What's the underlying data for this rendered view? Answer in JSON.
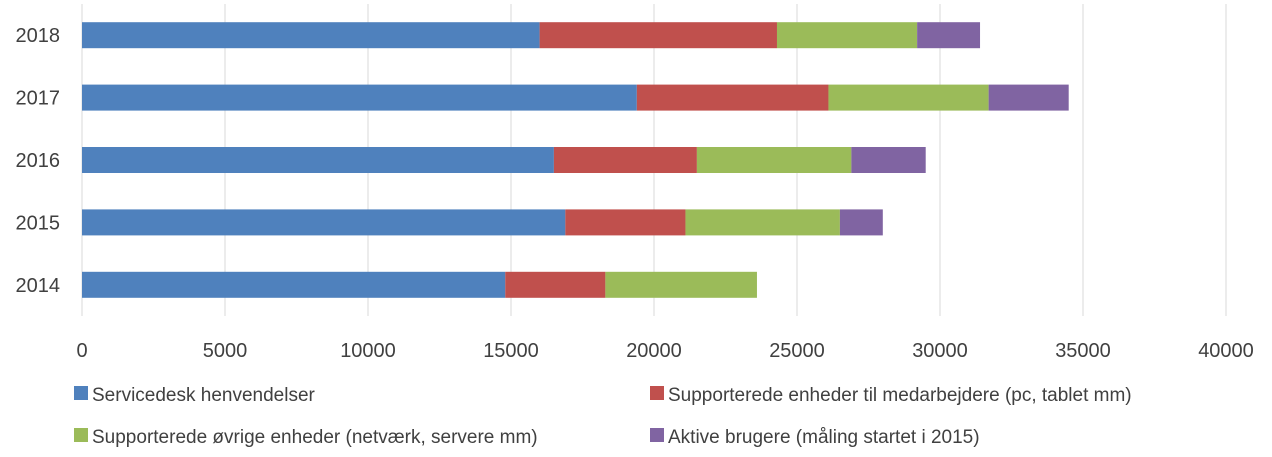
{
  "chart_data": {
    "type": "bar",
    "orientation": "horizontal",
    "stacked": true,
    "title": "",
    "xlabel": "",
    "ylabel": "",
    "categories": [
      "2014",
      "2015",
      "2016",
      "2017",
      "2018"
    ],
    "xlim": [
      0,
      40000
    ],
    "xticks": [
      0,
      5000,
      10000,
      15000,
      20000,
      25000,
      30000,
      35000,
      40000
    ],
    "grid": true,
    "legend_position": "bottom",
    "series": [
      {
        "name": "Servicedesk henvendelser",
        "color": "#4f81bd",
        "values": [
          14800,
          16900,
          16500,
          19400,
          16000
        ]
      },
      {
        "name": "Supporterede enheder til medarbejdere (pc, tablet mm)",
        "color": "#c0504d",
        "values": [
          3500,
          4200,
          5000,
          6700,
          8300
        ]
      },
      {
        "name": "Supporterede øvrige enheder (netværk, servere mm)",
        "color": "#9bbb59",
        "values": [
          5300,
          5400,
          5400,
          5600,
          4900
        ]
      },
      {
        "name": "Aktive brugere (måling startet i 2015)",
        "color": "#8064a2",
        "values": [
          0,
          1500,
          2600,
          2800,
          2200
        ]
      }
    ]
  }
}
